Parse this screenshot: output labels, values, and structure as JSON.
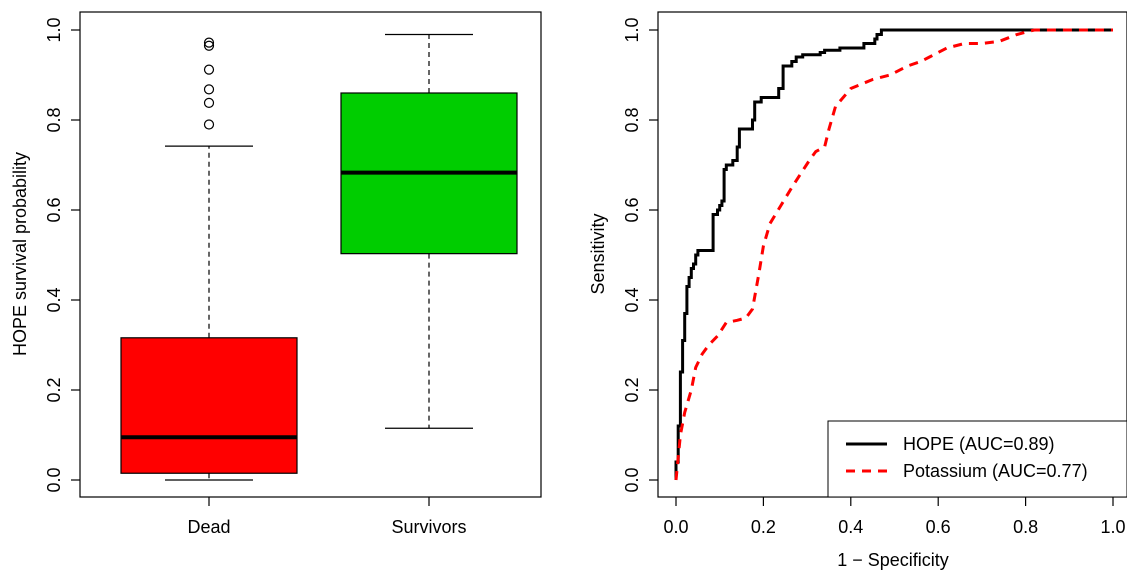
{
  "chart_data": [
    {
      "type": "box",
      "ylabel": "HOPE survival probability",
      "ylim": [
        0,
        1
      ],
      "yticks": [
        "0.0",
        "0.2",
        "0.4",
        "0.6",
        "0.8",
        "1.0"
      ],
      "categories": [
        "Dead",
        "Survivors"
      ],
      "boxes": [
        {
          "name": "Dead",
          "color": "#ff0000",
          "whisker_low": 0.0,
          "q1": 0.015,
          "median": 0.095,
          "q3": 0.316,
          "whisker_high": 0.742,
          "outliers": [
            0.79,
            0.838,
            0.868,
            0.912,
            0.965,
            0.972
          ]
        },
        {
          "name": "Survivors",
          "color": "#00cd00",
          "whisker_low": 0.115,
          "q1": 0.503,
          "median": 0.683,
          "q3": 0.86,
          "whisker_high": 0.99,
          "outliers": []
        }
      ]
    },
    {
      "type": "line",
      "xlabel": "1 − Specificity",
      "ylabel": "Sensitivity",
      "xlim": [
        0,
        1
      ],
      "ylim": [
        0,
        1
      ],
      "xticks": [
        "0.0",
        "0.2",
        "0.4",
        "0.6",
        "0.8",
        "1.0"
      ],
      "yticks": [
        "0.0",
        "0.2",
        "0.4",
        "0.6",
        "0.8",
        "1.0"
      ],
      "legend": "bottom-right",
      "series": [
        {
          "name": "HOPE (AUC=0.89)",
          "color": "#000000",
          "dash": "solid",
          "x": [
            0.0,
            0.0,
            0.005,
            0.005,
            0.01,
            0.01,
            0.015,
            0.015,
            0.02,
            0.02,
            0.025,
            0.025,
            0.03,
            0.03,
            0.035,
            0.035,
            0.04,
            0.04,
            0.045,
            0.045,
            0.05,
            0.05,
            0.06,
            0.06,
            0.085,
            0.085,
            0.095,
            0.095,
            0.1,
            0.1,
            0.105,
            0.105,
            0.11,
            0.11,
            0.115,
            0.115,
            0.13,
            0.13,
            0.14,
            0.14,
            0.145,
            0.145,
            0.155,
            0.155,
            0.175,
            0.175,
            0.18,
            0.18,
            0.195,
            0.195,
            0.235,
            0.235,
            0.245,
            0.245,
            0.265,
            0.265,
            0.275,
            0.275,
            0.29,
            0.29,
            0.31,
            0.31,
            0.33,
            0.33,
            0.34,
            0.34,
            0.375,
            0.375,
            0.43,
            0.43,
            0.455,
            0.455,
            0.46,
            0.46,
            0.47,
            0.47,
            1.0
          ],
          "y": [
            0.0,
            0.04,
            0.04,
            0.12,
            0.12,
            0.24,
            0.24,
            0.31,
            0.31,
            0.37,
            0.37,
            0.43,
            0.43,
            0.45,
            0.45,
            0.47,
            0.47,
            0.48,
            0.48,
            0.5,
            0.5,
            0.51,
            0.51,
            0.51,
            0.51,
            0.59,
            0.59,
            0.6,
            0.6,
            0.61,
            0.61,
            0.62,
            0.62,
            0.69,
            0.69,
            0.7,
            0.7,
            0.71,
            0.71,
            0.74,
            0.74,
            0.78,
            0.78,
            0.78,
            0.78,
            0.8,
            0.8,
            0.84,
            0.84,
            0.85,
            0.85,
            0.87,
            0.87,
            0.92,
            0.92,
            0.93,
            0.93,
            0.94,
            0.94,
            0.945,
            0.945,
            0.945,
            0.945,
            0.95,
            0.95,
            0.955,
            0.955,
            0.96,
            0.96,
            0.97,
            0.97,
            0.98,
            0.98,
            0.99,
            0.99,
            1.0,
            1.0
          ]
        },
        {
          "name": "Potassium (AUC=0.77)",
          "color": "#ff0000",
          "dash": "dashed",
          "x": [
            0.0,
            0.005,
            0.01,
            0.02,
            0.035,
            0.045,
            0.06,
            0.075,
            0.095,
            0.115,
            0.14,
            0.16,
            0.175,
            0.19,
            0.2,
            0.215,
            0.24,
            0.265,
            0.285,
            0.305,
            0.32,
            0.34,
            0.35,
            0.365,
            0.4,
            0.45,
            0.49,
            0.53,
            0.56,
            0.58,
            0.62,
            0.66,
            0.7,
            0.74,
            0.78,
            0.82,
            0.86,
            0.9,
            1.0
          ],
          "y": [
            0.0,
            0.05,
            0.1,
            0.15,
            0.2,
            0.25,
            0.28,
            0.3,
            0.32,
            0.35,
            0.355,
            0.36,
            0.38,
            0.46,
            0.52,
            0.57,
            0.61,
            0.65,
            0.68,
            0.71,
            0.73,
            0.74,
            0.78,
            0.83,
            0.87,
            0.89,
            0.9,
            0.92,
            0.93,
            0.94,
            0.96,
            0.97,
            0.97,
            0.975,
            0.99,
            1.0,
            1.0,
            1.0,
            1.0
          ]
        }
      ]
    }
  ]
}
